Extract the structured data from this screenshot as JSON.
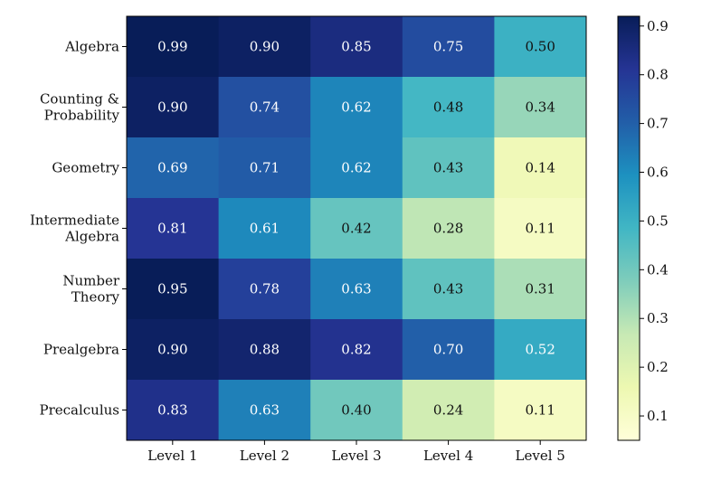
{
  "chart_data": {
    "type": "heatmap",
    "title": "",
    "xlabel": "",
    "ylabel": "",
    "x_categories": [
      "Level 1",
      "Level 2",
      "Level 3",
      "Level 4",
      "Level 5"
    ],
    "y_categories": [
      [
        "Algebra"
      ],
      [
        "Counting &",
        "Probability"
      ],
      [
        "Geometry"
      ],
      [
        "Intermediate",
        "Algebra"
      ],
      [
        "Number",
        "Theory"
      ],
      [
        "Prealgebra"
      ],
      [
        "Precalculus"
      ]
    ],
    "values": [
      [
        0.99,
        0.9,
        0.85,
        0.75,
        0.5
      ],
      [
        0.9,
        0.74,
        0.62,
        0.48,
        0.34
      ],
      [
        0.69,
        0.71,
        0.62,
        0.43,
        0.14
      ],
      [
        0.81,
        0.61,
        0.42,
        0.28,
        0.11
      ],
      [
        0.95,
        0.78,
        0.63,
        0.43,
        0.31
      ],
      [
        0.9,
        0.88,
        0.82,
        0.7,
        0.52
      ],
      [
        0.83,
        0.63,
        0.4,
        0.24,
        0.11
      ]
    ],
    "value_labels": [
      [
        "0.99",
        "0.90",
        "0.85",
        "0.75",
        "0.50"
      ],
      [
        "0.90",
        "0.74",
        "0.62",
        "0.48",
        "0.34"
      ],
      [
        "0.69",
        "0.71",
        "0.62",
        "0.43",
        "0.14"
      ],
      [
        "0.81",
        "0.61",
        "0.42",
        "0.28",
        "0.11"
      ],
      [
        "0.95",
        "0.78",
        "0.63",
        "0.43",
        "0.31"
      ],
      [
        "0.90",
        "0.88",
        "0.82",
        "0.70",
        "0.52"
      ],
      [
        "0.83",
        "0.63",
        "0.40",
        "0.24",
        "0.11"
      ]
    ],
    "colormap": "YlGnBu",
    "color_range": [
      0.05,
      0.92
    ],
    "colorbar": {
      "ticks": [
        0.1,
        0.2,
        0.3,
        0.4,
        0.5,
        0.6,
        0.7,
        0.8,
        0.9
      ],
      "tick_labels": [
        "0.1",
        "0.2",
        "0.3",
        "0.4",
        "0.5",
        "0.6",
        "0.7",
        "0.8",
        "0.9"
      ]
    },
    "grid": false,
    "legend": "colorbar-right"
  }
}
